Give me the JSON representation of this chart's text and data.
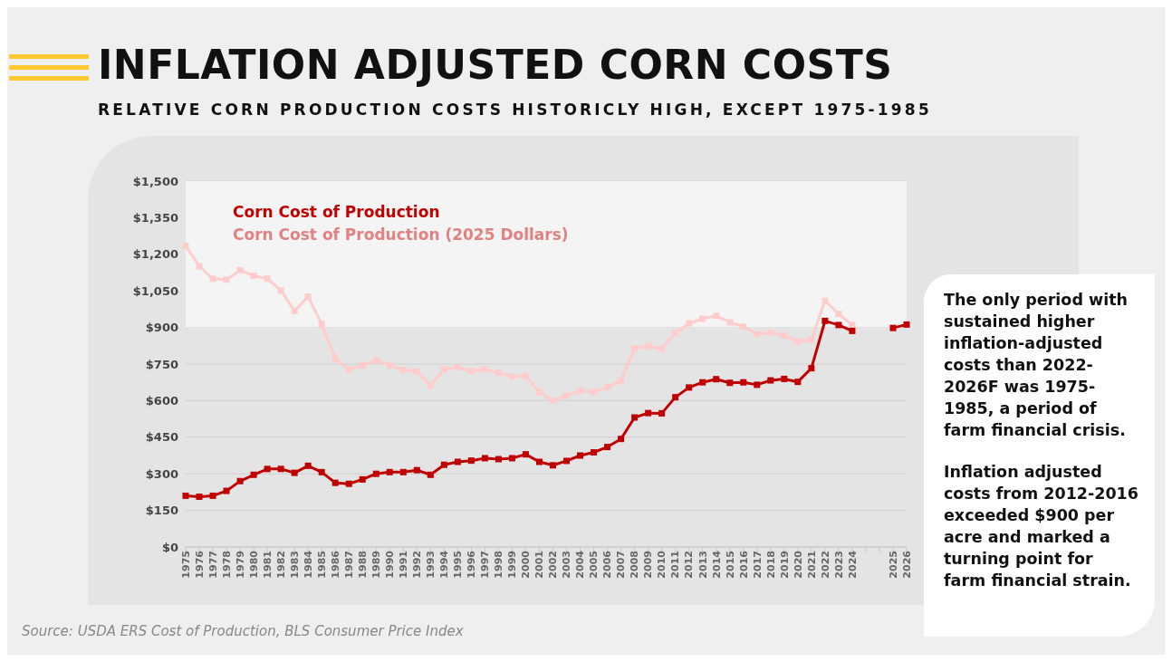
{
  "chart_data": {
    "type": "line",
    "title": "INFLATION ADJUSTED CORN COSTS",
    "subtitle": "RELATIVE CORN PRODUCTION COSTS HISTORICLY HIGH, EXCEPT 1975-1985",
    "categories": [
      "1975",
      "1976",
      "1977",
      "1978",
      "1979",
      "1980",
      "1981",
      "1982",
      "1983",
      "1984",
      "1985",
      "1986",
      "1987",
      "1988",
      "1989",
      "1990",
      "1991",
      "1992",
      "1993",
      "1994",
      "1995",
      "1996",
      "1997",
      "1998",
      "1999",
      "2000",
      "2001",
      "2002",
      "2003",
      "2004",
      "2005",
      "2006",
      "2007",
      "2008",
      "2009",
      "2010",
      "2011",
      "2012",
      "2013",
      "2014",
      "2015",
      "2016",
      "2017",
      "2018",
      "2019",
      "2020",
      "2021",
      "2022",
      "2023",
      "2024",
      null,
      null,
      "2025",
      "2026"
    ],
    "series": [
      {
        "name": "Corn Cost of Production",
        "color": "#c00000",
        "values": [
          210,
          206,
          210,
          230,
          270,
          296,
          320,
          320,
          304,
          333,
          307,
          263,
          259,
          277,
          300,
          307,
          307,
          315,
          296,
          337,
          349,
          354,
          364,
          360,
          364,
          380,
          349,
          335,
          353,
          375,
          388,
          410,
          443,
          531,
          549,
          548,
          614,
          654,
          675,
          688,
          673,
          675,
          665,
          683,
          689,
          677,
          733,
          927,
          910,
          886,
          null,
          null,
          898,
          912
        ]
      },
      {
        "name": "Corn Cost of Production (2025 Dollars)",
        "color": "#ffcccc",
        "values": [
          1235,
          1151,
          1100,
          1096,
          1135,
          1112,
          1100,
          1052,
          968,
          1026,
          914,
          772,
          728,
          744,
          765,
          744,
          725,
          720,
          662,
          728,
          737,
          722,
          728,
          714,
          699,
          702,
          635,
          600,
          620,
          641,
          636,
          656,
          680,
          815,
          822,
          812,
          877,
          917,
          936,
          948,
          921,
          904,
          872,
          879,
          867,
          842,
          851,
          1009,
          956,
          910,
          null,
          null,
          null,
          null
        ]
      }
    ],
    "ylim": [
      0,
      1500
    ],
    "yticks": [
      {
        "value": 0,
        "label": "$0"
      },
      {
        "value": 150,
        "label": "$150"
      },
      {
        "value": 300,
        "label": "$300"
      },
      {
        "value": 450,
        "label": "$450"
      },
      {
        "value": 600,
        "label": "$600"
      },
      {
        "value": 750,
        "label": "$750"
      },
      {
        "value": 900,
        "label": "$900"
      },
      {
        "value": 1050,
        "label": "$1,050"
      },
      {
        "value": 1200,
        "label": "$1,200"
      },
      {
        "value": 1350,
        "label": "$1,350"
      },
      {
        "value": 1500,
        "label": "$1,500"
      }
    ],
    "bands": [
      {
        "axis": "y",
        "from": 900,
        "to": 1500,
        "color": "#f4f4f4"
      }
    ],
    "grid": "y",
    "legend": "top left",
    "marker": "square",
    "line_style": "solid",
    "annotations": [
      "The only period with sustained higher inflation-adjusted costs than 2022-2026F was 1975-1985, a period of farm financial crisis.",
      "Inflation adjusted costs from 2012-2016 exceeded $900 per acre and marked a turning point for farm financial strain.",
      "Source: USDA ERS Cost of Production, BLS Consumer Price Index"
    ]
  }
}
